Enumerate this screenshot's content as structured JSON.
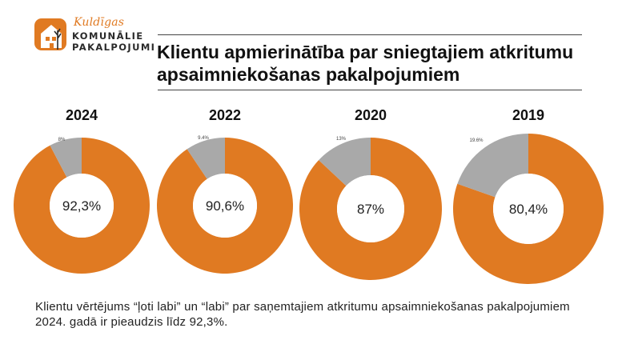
{
  "logo": {
    "word1": "Kuldīgas",
    "word2": "KOMUNĀLIE",
    "word3": "PAKALPOJUMI"
  },
  "title": "Klientu apmierinātība par sniegtajiem atkritumu apsaimniekošanas pakalpojumiem",
  "colors": {
    "satisfied": "#e07a22",
    "other": "#a9a9a9"
  },
  "chart_data": [
    {
      "type": "pie",
      "title": "2024",
      "center_label": "92,3%",
      "values": [
        92.3,
        7.7
      ],
      "slice_labels": [
        "",
        "8%"
      ]
    },
    {
      "type": "pie",
      "title": "2022",
      "center_label": "90,6%",
      "values": [
        90.6,
        9.4
      ],
      "slice_labels": [
        "",
        "9.4%"
      ]
    },
    {
      "type": "pie",
      "title": "2020",
      "center_label": "87%",
      "values": [
        87,
        13
      ],
      "slice_labels": [
        "",
        "13%"
      ]
    },
    {
      "type": "pie",
      "title": "2019",
      "center_label": "80,4%",
      "values": [
        80.4,
        19.6
      ],
      "slice_labels": [
        "",
        "19.6%"
      ]
    }
  ],
  "footer": "Klientu vērtējums “ļoti labi” un “labi” par saņemtajiem atkritumu apsaimniekošanas pakalpojumiem 2024. gadā ir pieaudzis līdz 92,3%."
}
